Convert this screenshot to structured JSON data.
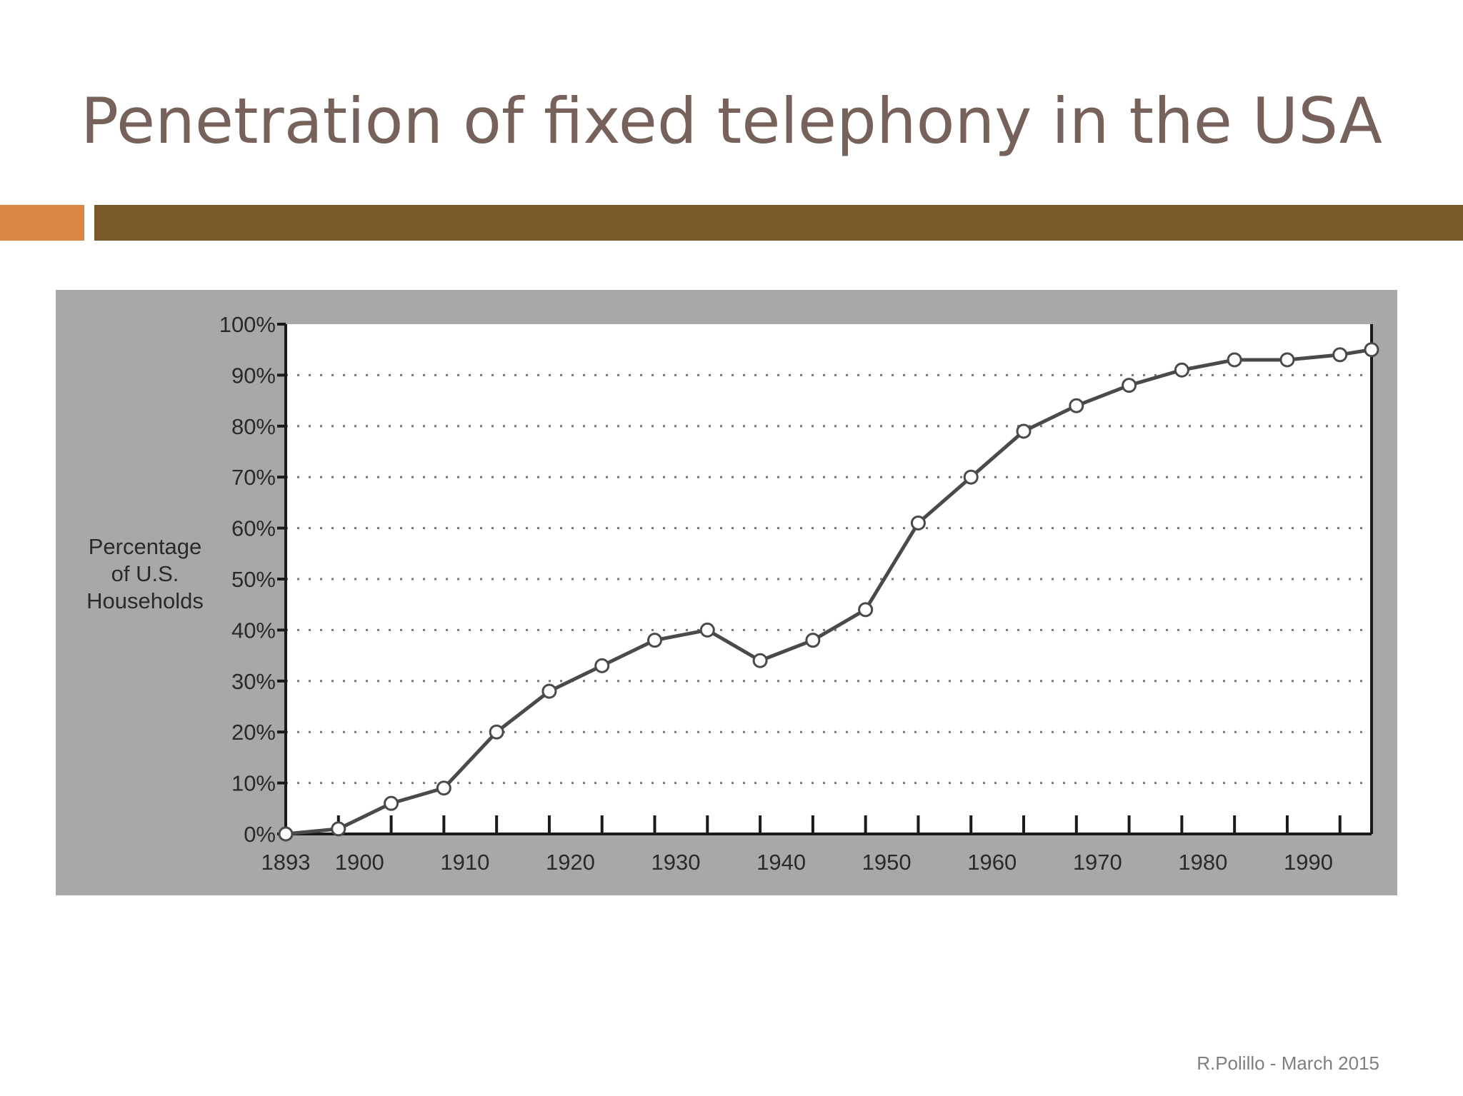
{
  "slide": {
    "title": "Penetration of fixed telephony in the USA",
    "footer": "R.Polillo - March 2015",
    "colors": {
      "title": "#76625a",
      "accent_orange": "#d98545",
      "accent_brown": "#7a5a29",
      "chart_background": "#a8a8a8",
      "plot_area": "#ffffff",
      "line": "#4a4a4a"
    }
  },
  "chart_data": {
    "type": "line",
    "ylabel": "Percentage of U.S. Households",
    "xlabel": "",
    "xlim": [
      1893,
      1996
    ],
    "ylim": [
      0,
      100
    ],
    "grid": true,
    "x_ticks": [
      "1893",
      "1900",
      "1910",
      "1920",
      "1930",
      "1940",
      "1950",
      "1960",
      "1970",
      "1980",
      "1990"
    ],
    "y_ticks": [
      "0%",
      "10%",
      "20%",
      "30%",
      "40%",
      "50%",
      "60%",
      "70%",
      "80%",
      "90%",
      "100%"
    ],
    "series": [
      {
        "x": [
          1893,
          1898,
          1903,
          1908,
          1913,
          1918,
          1923,
          1928,
          1933,
          1938,
          1943,
          1948,
          1953,
          1958,
          1963,
          1968,
          1973,
          1978,
          1983,
          1988,
          1993,
          1996
        ],
        "values": [
          0,
          1,
          6,
          9,
          20,
          28,
          33,
          38,
          40,
          34,
          38,
          44,
          61,
          70,
          79,
          84,
          88,
          91,
          93,
          93,
          94,
          95
        ]
      }
    ]
  }
}
